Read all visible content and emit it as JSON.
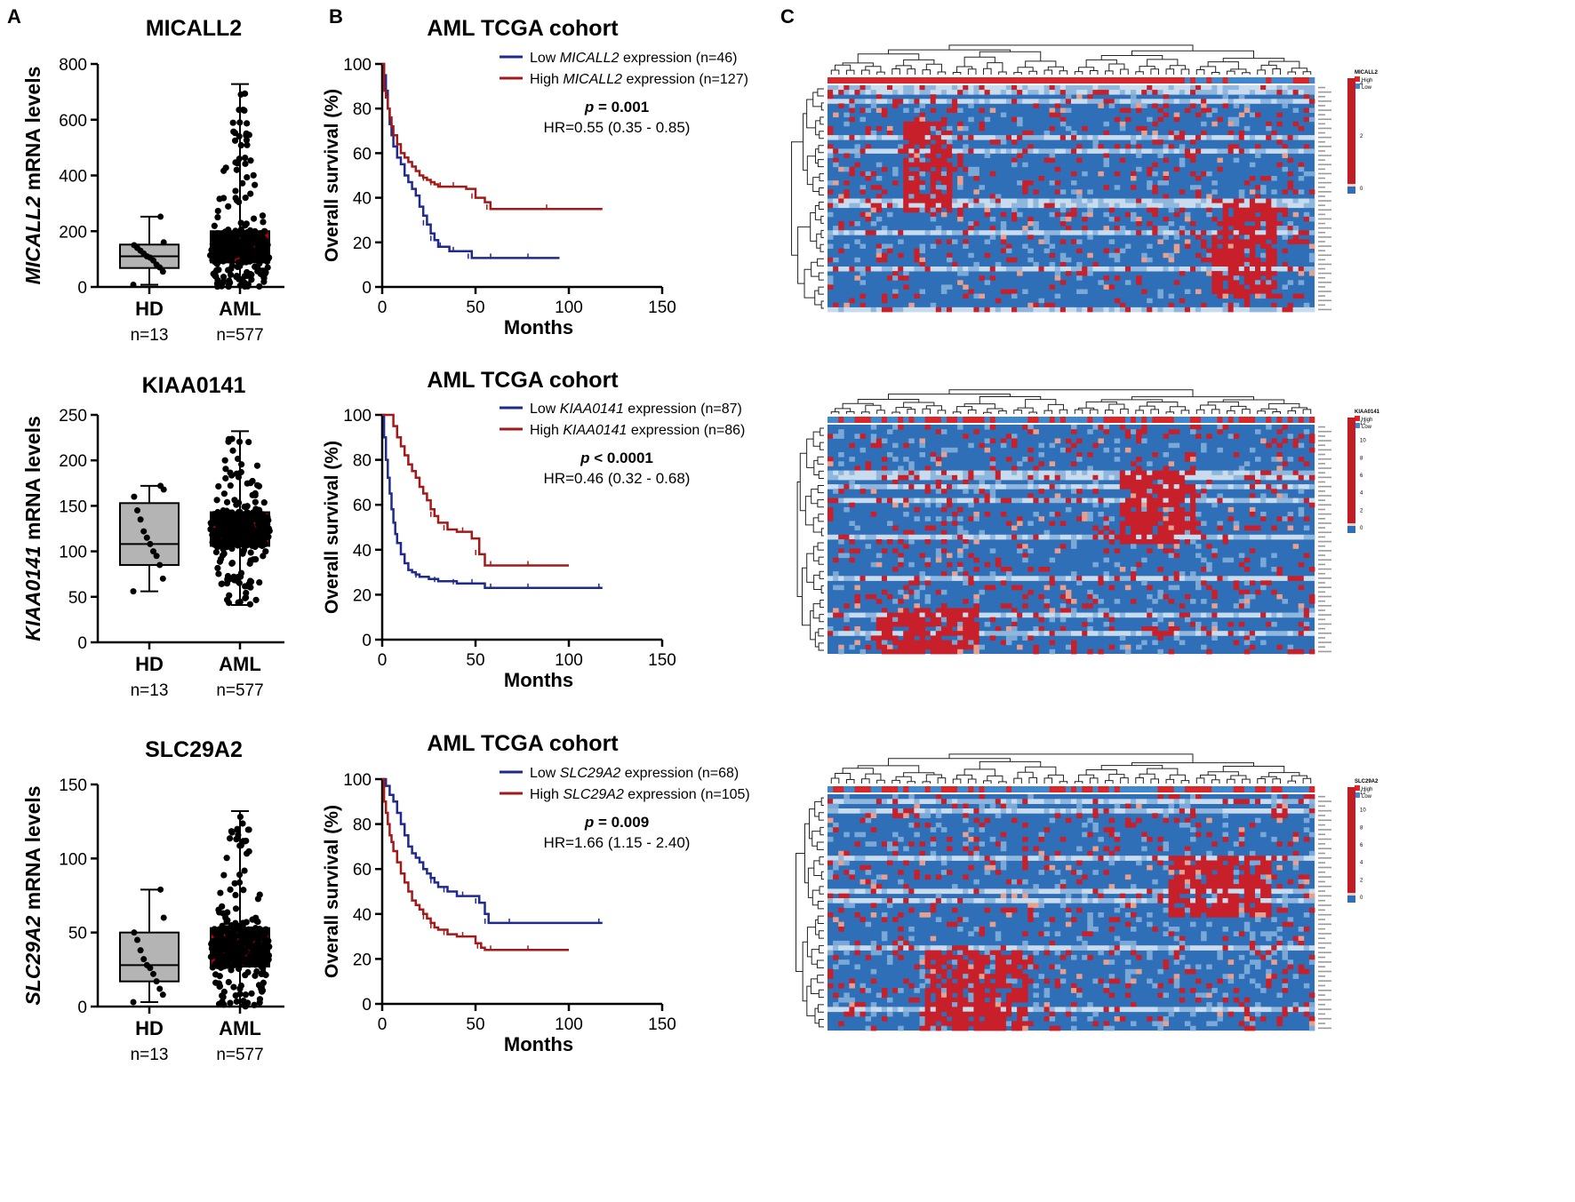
{
  "panel_labels": [
    "A",
    "B",
    "C"
  ],
  "chart_data": [
    {
      "type": "box",
      "panel": "A",
      "title": "MICALL2",
      "ylabel_gene": "MICALL2",
      "ylabel_rest": " mRNA levels",
      "ylim": [
        0,
        800
      ],
      "yticks": [
        0,
        200,
        400,
        600,
        800
      ],
      "groups": [
        {
          "name": "HD",
          "n": "n=13",
          "min": 8,
          "q1": 68,
          "median": 110,
          "q3": 152,
          "max": 252,
          "points": [
            8,
            55,
            70,
            80,
            95,
            105,
            110,
            120,
            130,
            140,
            150,
            160,
            252
          ]
        },
        {
          "name": "AML",
          "n": "n=577",
          "min": 0,
          "q1": 88,
          "median": 122,
          "q3": 200,
          "max": 728
        }
      ]
    },
    {
      "type": "box",
      "panel": "A",
      "title": "KIAA0141",
      "ylabel_gene": "KIAA0141",
      "ylabel_rest": " mRNA levels",
      "ylim": [
        0,
        250
      ],
      "yticks": [
        0,
        50,
        100,
        150,
        200,
        250
      ],
      "groups": [
        {
          "name": "HD",
          "n": "n=13",
          "min": 56,
          "q1": 85,
          "median": 108,
          "q3": 153,
          "max": 172,
          "points": [
            56,
            70,
            85,
            95,
            100,
            108,
            115,
            122,
            135,
            145,
            160,
            168,
            172
          ]
        },
        {
          "name": "AML",
          "n": "n=577",
          "min": 41,
          "q1": 106,
          "median": 125,
          "q3": 143,
          "max": 232
        }
      ]
    },
    {
      "type": "box",
      "panel": "A",
      "title": "SLC29A2",
      "ylabel_gene": "SLC29A2",
      "ylabel_rest": " mRNA levels",
      "ylim": [
        0,
        150
      ],
      "yticks": [
        0,
        50,
        100,
        150
      ],
      "groups": [
        {
          "name": "HD",
          "n": "n=13",
          "min": 3,
          "q1": 17,
          "median": 28,
          "q3": 50,
          "max": 79,
          "points": [
            3,
            8,
            12,
            17,
            22,
            26,
            28,
            32,
            38,
            45,
            50,
            60,
            79
          ]
        },
        {
          "name": "AML",
          "n": "n=577",
          "min": 0,
          "q1": 27,
          "median": 37,
          "q3": 53,
          "max": 132
        }
      ]
    },
    {
      "type": "line",
      "panel": "B",
      "title": "AML TCGA cohort",
      "xlabel": "Months",
      "ylabel": "Overall survival (%)",
      "xlim": [
        0,
        150
      ],
      "xticks": [
        0,
        50,
        100,
        150
      ],
      "ylim": [
        0,
        100
      ],
      "yticks": [
        0,
        20,
        40,
        60,
        80,
        100
      ],
      "gene": "MICALL2",
      "p_label": "p",
      "p_rest": " = 0.001",
      "hr": "HR=0.55 (0.35 - 0.85)",
      "series": [
        {
          "name": "Low",
          "label_pre": "Low ",
          "label_post": " expression (n=46)",
          "color": "#1f2a8c",
          "x": [
            0,
            1,
            2,
            3,
            4,
            5,
            6,
            8,
            10,
            12,
            14,
            16,
            18,
            20,
            22,
            24,
            26,
            28,
            30,
            33,
            36,
            40,
            45,
            48,
            52,
            60,
            70,
            80,
            95
          ],
          "y": [
            100,
            95,
            88,
            80,
            73,
            68,
            63,
            58,
            55,
            50,
            47,
            44,
            41,
            36,
            32,
            28,
            24,
            21,
            18,
            18,
            16,
            16,
            16,
            13,
            13,
            13,
            13,
            13,
            13
          ]
        },
        {
          "name": "High",
          "label_pre": "High ",
          "label_post": " expression (n=127)",
          "color": "#a31919",
          "x": [
            0,
            1,
            2,
            3,
            4,
            5,
            6,
            8,
            10,
            12,
            14,
            16,
            18,
            20,
            22,
            24,
            26,
            28,
            30,
            33,
            36,
            40,
            45,
            50,
            55,
            58,
            70,
            90,
            118
          ],
          "y": [
            100,
            88,
            85,
            80,
            76,
            72,
            68,
            64,
            60,
            58,
            56,
            54,
            52,
            50,
            49,
            48,
            47,
            46,
            45,
            45,
            45,
            45,
            44,
            40,
            38,
            35,
            35,
            35,
            35
          ]
        }
      ]
    },
    {
      "type": "line",
      "panel": "B",
      "title": "AML TCGA cohort",
      "xlabel": "Months",
      "ylabel": "Overall survival (%)",
      "xlim": [
        0,
        150
      ],
      "xticks": [
        0,
        50,
        100,
        150
      ],
      "ylim": [
        0,
        100
      ],
      "yticks": [
        0,
        20,
        40,
        60,
        80,
        100
      ],
      "gene": "KIAA0141",
      "p_label": "p",
      "p_rest": " < 0.0001",
      "hr": "HR=0.46 (0.32 - 0.68)",
      "series": [
        {
          "name": "Low",
          "label_pre": "Low ",
          "label_post": " expression (n=87)",
          "color": "#1f2a8c",
          "x": [
            0,
            1,
            2,
            3,
            4,
            5,
            6,
            7,
            8,
            10,
            12,
            14,
            16,
            18,
            20,
            25,
            30,
            35,
            40,
            45,
            50,
            55,
            60,
            70,
            80,
            100,
            118
          ],
          "y": [
            100,
            90,
            80,
            72,
            65,
            58,
            52,
            47,
            43,
            38,
            34,
            31,
            30,
            29,
            28,
            27,
            26,
            26,
            25,
            25,
            25,
            23,
            23,
            23,
            23,
            23,
            23
          ]
        },
        {
          "name": "High",
          "label_pre": "High ",
          "label_post": " expression (n=86)",
          "color": "#a31919",
          "x": [
            0,
            5,
            6,
            8,
            10,
            12,
            14,
            16,
            18,
            20,
            22,
            24,
            26,
            28,
            30,
            35,
            40,
            45,
            48,
            52,
            55,
            60,
            70,
            80,
            100
          ],
          "y": [
            100,
            100,
            95,
            90,
            86,
            82,
            78,
            75,
            72,
            68,
            65,
            62,
            58,
            55,
            52,
            49,
            48,
            48,
            45,
            38,
            33,
            33,
            33,
            33,
            33
          ]
        }
      ]
    },
    {
      "type": "line",
      "panel": "B",
      "title": "AML TCGA cohort",
      "xlabel": "Months",
      "ylabel": "Overall survival (%)",
      "xlim": [
        0,
        150
      ],
      "xticks": [
        0,
        50,
        100,
        150
      ],
      "ylim": [
        0,
        100
      ],
      "yticks": [
        0,
        20,
        40,
        60,
        80,
        100
      ],
      "gene": "SLC29A2",
      "p_label": "p",
      "p_rest": " = 0.009",
      "hr": "HR=1.66 (1.15 - 2.40)",
      "series": [
        {
          "name": "Low",
          "label_pre": "Low ",
          "label_post": " expression (n=68)",
          "color": "#1f2a8c",
          "x": [
            0,
            2,
            4,
            6,
            8,
            10,
            12,
            14,
            16,
            18,
            20,
            22,
            24,
            26,
            28,
            30,
            35,
            40,
            45,
            50,
            52,
            55,
            57,
            60,
            70,
            90,
            118
          ],
          "y": [
            100,
            97,
            93,
            90,
            85,
            80,
            75,
            70,
            67,
            65,
            63,
            60,
            58,
            56,
            54,
            52,
            50,
            48,
            48,
            48,
            45,
            40,
            36,
            36,
            36,
            36,
            36
          ]
        },
        {
          "name": "High",
          "label_pre": "High ",
          "label_post": " expression (n=105)",
          "color": "#a31919",
          "x": [
            0,
            1,
            2,
            3,
            4,
            5,
            6,
            8,
            10,
            12,
            14,
            16,
            18,
            20,
            22,
            24,
            26,
            28,
            30,
            35,
            40,
            45,
            50,
            53,
            55,
            60,
            70,
            80,
            100
          ],
          "y": [
            100,
            90,
            85,
            80,
            75,
            72,
            68,
            63,
            58,
            54,
            50,
            46,
            44,
            42,
            40,
            38,
            36,
            34,
            33,
            31,
            30,
            30,
            27,
            25,
            24,
            24,
            24,
            24,
            24
          ]
        }
      ]
    },
    {
      "type": "heatmap",
      "panel": "C",
      "gene": "MICALL2",
      "legend": {
        "title": "MICALL2",
        "high": "High",
        "low": "Low",
        "scale": [
          "4",
          "2",
          "0"
        ]
      },
      "annotation": "alternating high/low expression group bar",
      "hotspots": [
        [
          0.15,
          0.25,
          0.15,
          0.55
        ],
        [
          0.78,
          0.92,
          0.5,
          0.92
        ]
      ]
    },
    {
      "type": "heatmap",
      "panel": "C",
      "gene": "KIAA0141",
      "legend": {
        "title": "KIAA0141",
        "high": "High",
        "low": "Low",
        "scale": [
          "12",
          "10",
          "8",
          "6",
          "4",
          "2",
          "0"
        ]
      },
      "hotspots": [
        [
          0.6,
          0.75,
          0.2,
          0.5
        ],
        [
          0.1,
          0.3,
          0.8,
          1.0
        ]
      ]
    },
    {
      "type": "heatmap",
      "panel": "C",
      "gene": "SLC29A2",
      "legend": {
        "title": "SLC29A2",
        "high": "High",
        "low": "Low",
        "scale": [
          "12",
          "10",
          "8",
          "6",
          "4",
          "2",
          "0"
        ]
      },
      "hotspots": [
        [
          0.7,
          0.9,
          0.25,
          0.5
        ],
        [
          0.2,
          0.4,
          0.65,
          1.0
        ]
      ]
    }
  ]
}
